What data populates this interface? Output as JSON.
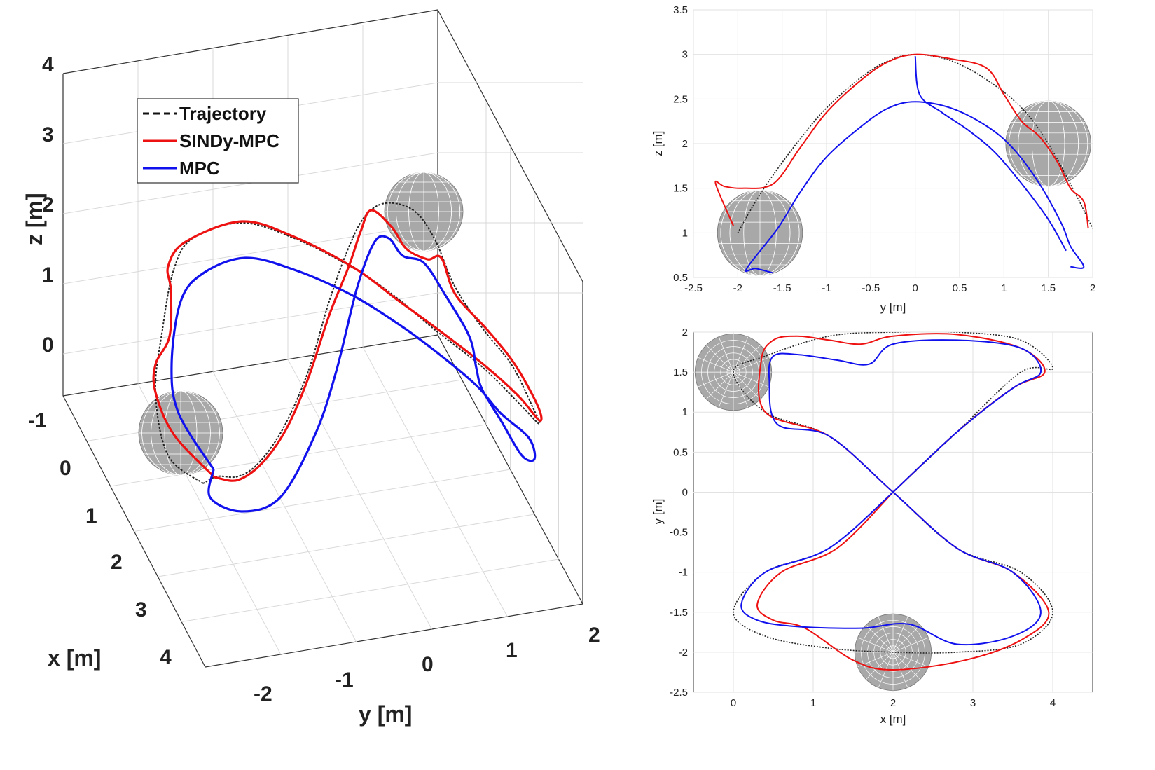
{
  "chart_data": [
    {
      "id": "view3d",
      "type": "line",
      "title": "",
      "xlabel": "x [m]",
      "ylabel": "y [m]",
      "zlabel": "z [m]",
      "xticks": [
        "-1",
        "0",
        "1",
        "2",
        "3",
        "4"
      ],
      "yticks": [
        "-2",
        "-1",
        "0",
        "1",
        "2"
      ],
      "zticks": [
        "0",
        "1",
        "2",
        "3",
        "4"
      ],
      "xlim": [
        -1,
        4.5
      ],
      "ylim": [
        -2.5,
        2
      ],
      "zlim": [
        -0.5,
        4
      ],
      "legend": {
        "position": "top-left",
        "entries": [
          {
            "label": "Trajectory",
            "color": "#111111",
            "style": "dashed"
          },
          {
            "label": "SINDy-MPC",
            "color": "#ee1111",
            "style": "solid"
          },
          {
            "label": "MPC",
            "color": "#1111ee",
            "style": "solid"
          }
        ]
      },
      "obstacles": [
        {
          "x": 0,
          "y": 1.5,
          "z": 2,
          "r": 0.45
        },
        {
          "x": 2,
          "y": -2,
          "z": 1,
          "r": 0.45
        }
      ]
    },
    {
      "id": "yz",
      "type": "line",
      "title": "",
      "xlabel": "y [m]",
      "ylabel": "z [m]",
      "xlim": [
        -2.5,
        2
      ],
      "ylim": [
        0.5,
        3.5
      ],
      "xticks": [
        "-2.5",
        "-2",
        "-1.5",
        "-1",
        "-0.5",
        "0",
        "0.5",
        "1",
        "1.5",
        "2"
      ],
      "yticks": [
        "0.5",
        "1",
        "1.5",
        "2",
        "2.5",
        "3",
        "3.5"
      ],
      "grid": true,
      "obstacles": [
        {
          "cx": -1.75,
          "cy": 1.0,
          "r": 0.48
        },
        {
          "cx": 1.5,
          "cy": 2.0,
          "r": 0.48
        }
      ],
      "series": [
        {
          "name": "Trajectory",
          "color": "#222222",
          "x": [
            -2,
            -1.8,
            -1.6,
            -1.3,
            -1,
            -0.6,
            -0.3,
            0,
            0.4,
            0.8,
            1.2,
            1.5,
            1.8,
            2.0
          ],
          "y": [
            1.0,
            1.35,
            1.65,
            2.05,
            2.4,
            2.75,
            2.93,
            3.0,
            2.93,
            2.72,
            2.4,
            2.0,
            1.45,
            1.05
          ]
        },
        {
          "name": "SINDy-MPC",
          "color": "#ee1111",
          "x": [
            -2.05,
            -2.25,
            -2.15,
            -1.95,
            -1.6,
            -1.3,
            -1,
            -0.6,
            -0.3,
            0,
            0.4,
            0.8,
            1.0,
            1.2,
            1.4,
            1.6,
            1.75,
            1.9,
            1.95
          ],
          "y": [
            1.08,
            1.55,
            1.52,
            1.5,
            1.55,
            1.95,
            2.35,
            2.72,
            2.92,
            3.0,
            2.95,
            2.85,
            2.55,
            2.25,
            2.08,
            1.8,
            1.5,
            1.35,
            1.05
          ]
        },
        {
          "name": "MPC",
          "color": "#1111ee",
          "x": [
            -1.6,
            -1.8,
            -1.9,
            -1.55,
            -1.3,
            -1,
            -0.6,
            -0.3,
            0,
            0.4,
            0.8,
            1.1,
            1.4,
            1.65,
            1.75,
            1.9,
            1.75
          ],
          "y": [
            0.55,
            0.6,
            0.6,
            1.05,
            1.45,
            1.85,
            2.2,
            2.4,
            2.47,
            2.4,
            2.2,
            1.95,
            1.55,
            1.1,
            0.85,
            0.62,
            0.62
          ]
        },
        {
          "name": "MPC",
          "color": "#1111ee",
          "x": [
            0,
            0.05,
            0.3,
            0.6,
            0.9,
            1.2,
            1.5,
            1.7
          ],
          "y": [
            2.98,
            2.55,
            2.35,
            2.15,
            1.9,
            1.55,
            1.15,
            0.8
          ]
        }
      ]
    },
    {
      "id": "xy",
      "type": "line",
      "title": "",
      "xlabel": "x [m]",
      "ylabel": "y [m]",
      "xlim": [
        -0.5,
        4.5
      ],
      "ylim": [
        -2.5,
        2
      ],
      "xticks": [
        "0",
        "1",
        "2",
        "3",
        "4"
      ],
      "yticks": [
        "-2.5",
        "-2",
        "-1.5",
        "-1",
        "-0.5",
        "0",
        "0.5",
        "1",
        "1.5",
        "2"
      ],
      "grid": true,
      "obstacles": [
        {
          "cx": 0,
          "cy": 1.5,
          "r": 0.48
        },
        {
          "cx": 2,
          "cy": -2.0,
          "r": 0.48
        }
      ],
      "series": [
        {
          "name": "Trajectory",
          "color": "#222222",
          "x": [
            2,
            2.8,
            3.6,
            4.0,
            3.6,
            2.8,
            2.0,
            1.2,
            0.4,
            0.0,
            0.4,
            1.2,
            2.0,
            2.8,
            3.6,
            4.0,
            3.6,
            2.8,
            2.0,
            1.2,
            0.4,
            0.0,
            0.4,
            1.2,
            2.0
          ],
          "y": [
            0,
            0.75,
            1.5,
            1.55,
            1.9,
            2.0,
            2.0,
            1.95,
            1.7,
            1.5,
            1.0,
            0.7,
            0,
            -0.7,
            -1.0,
            -1.5,
            -1.9,
            -2.0,
            -2.0,
            -1.95,
            -1.8,
            -1.5,
            -1.0,
            -0.7,
            0
          ]
        },
        {
          "name": "SINDy-MPC",
          "color": "#ee1111",
          "x": [
            2,
            2.8,
            3.5,
            3.9,
            3.6,
            2.8,
            2.0,
            1.6,
            1.2,
            0.8,
            0.5,
            0.35,
            0.4,
            1.2,
            2.0,
            2.8,
            3.5,
            3.95,
            3.6,
            2.9,
            2.0,
            1.5,
            0.9,
            0.5,
            0.3,
            0.6,
            1.3,
            2.0
          ],
          "y": [
            0,
            0.75,
            1.3,
            1.5,
            1.8,
            1.97,
            1.95,
            1.85,
            1.9,
            1.95,
            1.9,
            1.65,
            1.0,
            0.7,
            0,
            -0.7,
            -1.0,
            -1.5,
            -1.85,
            -2.1,
            -2.22,
            -2.1,
            -1.7,
            -1.6,
            -1.4,
            -1.0,
            -0.7,
            0
          ]
        },
        {
          "name": "MPC",
          "color": "#1111ee",
          "x": [
            2,
            2.8,
            3.5,
            3.85,
            3.6,
            2.8,
            2.0,
            1.7,
            1.3,
            0.8,
            0.5,
            0.45,
            0.55,
            1.2,
            2.0,
            2.8,
            3.5,
            3.85,
            3.5,
            2.8,
            2.2,
            1.6,
            0.8,
            0.3,
            0.1,
            0.4,
            1.2,
            2.0
          ],
          "y": [
            0,
            0.75,
            1.3,
            1.5,
            1.8,
            1.9,
            1.85,
            1.6,
            1.65,
            1.72,
            1.7,
            1.4,
            0.85,
            0.7,
            0,
            -0.7,
            -1.0,
            -1.5,
            -1.8,
            -1.9,
            -1.65,
            -1.7,
            -1.68,
            -1.6,
            -1.4,
            -1.0,
            -0.7,
            0
          ]
        }
      ]
    }
  ],
  "curves3d": [
    {
      "name": "Trajectory",
      "color": "#222222",
      "points": [
        [
          290,
          690
        ],
        [
          240,
          650
        ],
        [
          222,
          560
        ],
        [
          232,
          470
        ],
        [
          248,
          385
        ],
        [
          275,
          340
        ],
        [
          345,
          318
        ],
        [
          420,
          340
        ],
        [
          500,
          380
        ],
        [
          560,
          420
        ],
        [
          620,
          470
        ],
        [
          690,
          525
        ],
        [
          745,
          580
        ],
        [
          770,
          605
        ],
        [
          760,
          580
        ],
        [
          730,
          520
        ],
        [
          690,
          470
        ],
        [
          650,
          410
        ],
        [
          620,
          340
        ],
        [
          590,
          300
        ],
        [
          550,
          290
        ],
        [
          520,
          310
        ],
        [
          495,
          360
        ],
        [
          470,
          430
        ],
        [
          440,
          530
        ],
        [
          405,
          610
        ],
        [
          370,
          660
        ],
        [
          340,
          680
        ],
        [
          310,
          680
        ]
      ]
    },
    {
      "name": "SINDy-MPC",
      "color": "#ee1111",
      "points": [
        [
          305,
          680
        ],
        [
          248,
          620
        ],
        [
          222,
          560
        ],
        [
          222,
          520
        ],
        [
          242,
          480
        ],
        [
          244,
          415
        ],
        [
          240,
          380
        ],
        [
          265,
          345
        ],
        [
          345,
          316
        ],
        [
          420,
          338
        ],
        [
          505,
          382
        ],
        [
          570,
          430
        ],
        [
          625,
          470
        ],
        [
          690,
          520
        ],
        [
          740,
          565
        ],
        [
          770,
          600
        ],
        [
          768,
          580
        ],
        [
          735,
          520
        ],
        [
          695,
          470
        ],
        [
          650,
          420
        ],
        [
          630,
          368
        ],
        [
          610,
          370
        ],
        [
          580,
          355
        ],
        [
          560,
          325
        ],
        [
          530,
          300
        ],
        [
          515,
          330
        ],
        [
          498,
          380
        ],
        [
          470,
          450
        ],
        [
          440,
          540
        ],
        [
          410,
          610
        ],
        [
          375,
          660
        ],
        [
          340,
          685
        ],
        [
          310,
          682
        ]
      ]
    },
    {
      "name": "MPC",
      "color": "#1111ee",
      "points": [
        [
          305,
          670
        ],
        [
          255,
          590
        ],
        [
          245,
          520
        ],
        [
          258,
          430
        ],
        [
          290,
          390
        ],
        [
          350,
          368
        ],
        [
          420,
          385
        ],
        [
          500,
          420
        ],
        [
          565,
          460
        ],
        [
          620,
          500
        ],
        [
          680,
          550
        ],
        [
          715,
          590
        ],
        [
          755,
          625
        ],
        [
          763,
          655
        ],
        [
          745,
          650
        ],
        [
          715,
          600
        ],
        [
          688,
          555
        ],
        [
          680,
          525
        ],
        [
          670,
          480
        ],
        [
          635,
          420
        ],
        [
          605,
          375
        ],
        [
          575,
          365
        ],
        [
          555,
          340
        ],
        [
          535,
          345
        ],
        [
          510,
          410
        ],
        [
          480,
          530
        ],
        [
          450,
          620
        ],
        [
          400,
          710
        ],
        [
          345,
          730
        ],
        [
          300,
          710
        ]
      ]
    }
  ],
  "spheres3d": [
    {
      "cx": 258,
      "cy": 618,
      "r": 60
    },
    {
      "cx": 605,
      "cy": 302,
      "r": 56
    }
  ]
}
